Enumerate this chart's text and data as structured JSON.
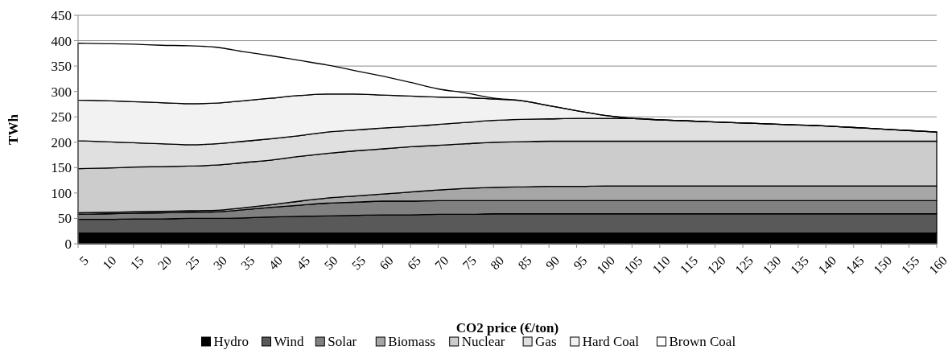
{
  "chart_data": {
    "type": "area",
    "stacked": true,
    "xlabel": "CO2 price (€/ton)",
    "ylabel": "TWh",
    "x": [
      5,
      10,
      15,
      20,
      25,
      30,
      35,
      40,
      45,
      50,
      55,
      60,
      65,
      70,
      75,
      80,
      85,
      90,
      95,
      100,
      105,
      110,
      115,
      120,
      125,
      130,
      135,
      140,
      145,
      150,
      155,
      160
    ],
    "xlim": [
      5,
      160
    ],
    "xticks": [
      5,
      10,
      15,
      20,
      25,
      30,
      35,
      40,
      45,
      50,
      55,
      60,
      65,
      70,
      75,
      80,
      85,
      90,
      95,
      100,
      105,
      110,
      115,
      120,
      125,
      130,
      135,
      140,
      145,
      150,
      155,
      160
    ],
    "ylim": [
      0,
      450
    ],
    "yticks": [
      0,
      50,
      100,
      150,
      200,
      250,
      300,
      350,
      400,
      450
    ],
    "grid": "y",
    "legend": "bottom",
    "series": [
      {
        "name": "Hydro",
        "color": "#000000",
        "values": [
          21,
          21,
          21,
          21,
          21,
          21,
          21,
          21,
          21,
          21,
          21,
          21,
          21,
          21,
          21,
          21,
          21,
          21,
          21,
          21,
          21,
          21,
          21,
          21,
          21,
          21,
          21,
          21,
          21,
          21,
          21,
          21
        ]
      },
      {
        "name": "Wind",
        "color": "#595959",
        "values": [
          27,
          27,
          28,
          28,
          29,
          29,
          30,
          32,
          33,
          34,
          35,
          36,
          36,
          37,
          37,
          38,
          38,
          38,
          38,
          38,
          38,
          38,
          38,
          38,
          38,
          38,
          38,
          38,
          38,
          38,
          38,
          38
        ]
      },
      {
        "name": "Solar",
        "color": "#808080",
        "values": [
          10,
          11,
          11,
          12,
          12,
          13,
          16,
          19,
          22,
          25,
          26,
          27,
          27,
          27,
          27,
          26,
          26,
          26,
          26,
          26,
          26,
          26,
          26,
          26,
          26,
          26,
          26,
          26,
          26,
          26,
          26,
          26
        ]
      },
      {
        "name": "Biomass",
        "color": "#a6a6a6",
        "values": [
          3,
          3,
          3,
          3,
          3,
          3,
          4,
          5,
          8,
          10,
          12,
          14,
          18,
          21,
          24,
          26,
          27,
          28,
          28,
          29,
          29,
          29,
          29,
          29,
          29,
          29,
          29,
          29,
          29,
          29,
          29,
          29
        ]
      },
      {
        "name": "Nuclear",
        "color": "#cccccc",
        "values": [
          87,
          87,
          88,
          88,
          88,
          89,
          89,
          88,
          88,
          88,
          89,
          89,
          89,
          88,
          88,
          89,
          89,
          89,
          89,
          88,
          88,
          88,
          88,
          88,
          88,
          88,
          88,
          88,
          88,
          88,
          88,
          88
        ]
      },
      {
        "name": "Gas",
        "color": "#e0e0e0",
        "values": [
          55,
          52,
          48,
          45,
          42,
          42,
          42,
          42,
          41,
          42,
          41,
          41,
          40,
          41,
          42,
          43,
          44,
          44,
          45,
          45,
          45,
          42,
          40,
          38,
          36,
          34,
          32,
          30,
          27,
          24,
          21,
          18
        ]
      },
      {
        "name": "Hard Coal",
        "color": "#f2f2f2",
        "values": [
          80,
          81,
          81,
          81,
          81,
          80,
          80,
          80,
          79,
          75,
          71,
          65,
          60,
          54,
          49,
          42,
          37,
          26,
          15,
          6,
          0,
          0,
          0,
          0,
          0,
          0,
          0,
          0,
          0,
          0,
          0,
          0
        ]
      },
      {
        "name": "Brown Coal",
        "color": "#ffffff",
        "values": [
          112,
          112,
          113,
          113,
          114,
          110,
          96,
          83,
          69,
          57,
          46,
          37,
          27,
          16,
          9,
          2,
          0,
          0,
          0,
          0,
          0,
          0,
          0,
          0,
          0,
          0,
          0,
          0,
          0,
          0,
          0,
          0
        ]
      }
    ]
  }
}
